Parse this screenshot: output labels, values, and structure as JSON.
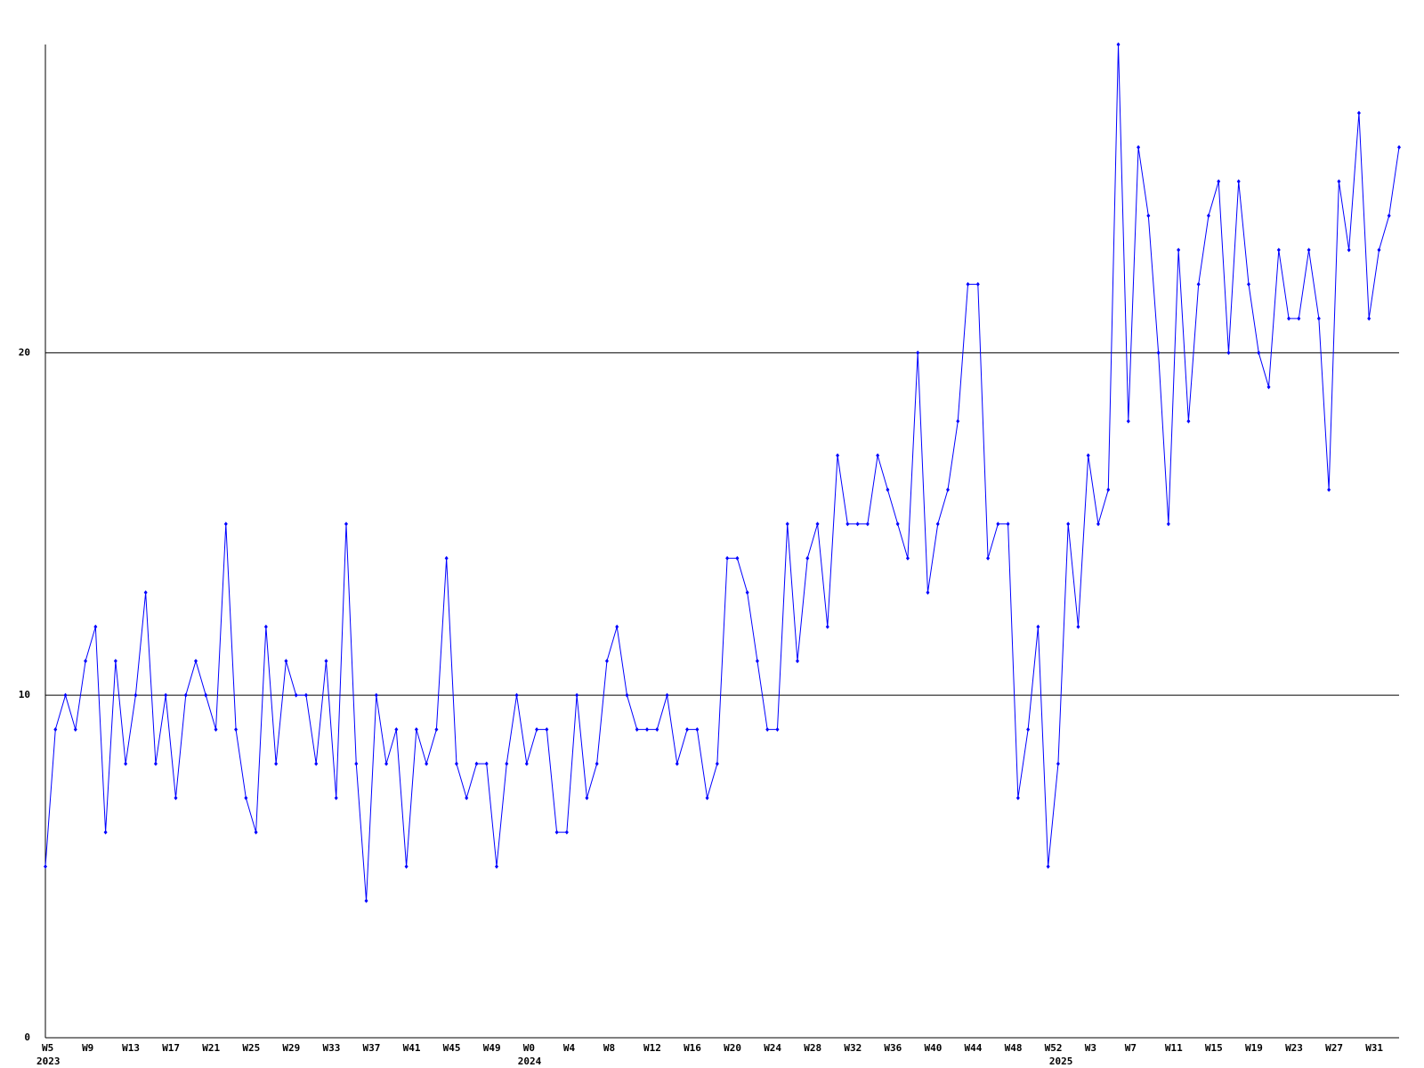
{
  "chart_data": {
    "type": "line",
    "categories": [
      "W5",
      null,
      null,
      null,
      "W9",
      null,
      null,
      null,
      "W13",
      null,
      null,
      null,
      "W17",
      null,
      null,
      null,
      "W21",
      null,
      null,
      null,
      "W25",
      null,
      null,
      null,
      "W29",
      null,
      null,
      null,
      "W33",
      null,
      null,
      null,
      "W37",
      null,
      null,
      null,
      "W41",
      null,
      null,
      null,
      "W45",
      null,
      null,
      null,
      "W49",
      null,
      null,
      null,
      "W0",
      null,
      null,
      null,
      "W4",
      null,
      null,
      null,
      "W8",
      null,
      null,
      null,
      "W12",
      null,
      null,
      null,
      "W16",
      null,
      null,
      null,
      "W20",
      null,
      null,
      null,
      "W24",
      null,
      null,
      null,
      "W28",
      null,
      null,
      null,
      "W32",
      null,
      null,
      null,
      "W36",
      null,
      null,
      null,
      "W40",
      null,
      null,
      null,
      "W44",
      null,
      null,
      null,
      "W48",
      null,
      null,
      null,
      "W52",
      null,
      null,
      null,
      "W3",
      null,
      null,
      null,
      "W7",
      null,
      null,
      null,
      "W11",
      null,
      null,
      null,
      "W15",
      null,
      null,
      null,
      "W19",
      null,
      null,
      null,
      "W23",
      null,
      null,
      null,
      "W27",
      null,
      null,
      null,
      "W31",
      null,
      null,
      null
    ],
    "year_labels": [
      "2023",
      null,
      null,
      null,
      null,
      null,
      null,
      null,
      null,
      null,
      null,
      null,
      null,
      null,
      null,
      null,
      null,
      null,
      null,
      null,
      null,
      null,
      null,
      null,
      null,
      null,
      null,
      null,
      null,
      null,
      null,
      null,
      null,
      null,
      null,
      null,
      null,
      null,
      null,
      null,
      null,
      null,
      null,
      null,
      null,
      null,
      null,
      null,
      "2024",
      null,
      null,
      null,
      null,
      null,
      null,
      null,
      null,
      null,
      null,
      null,
      null,
      null,
      null,
      null,
      null,
      null,
      null,
      null,
      null,
      null,
      null,
      null,
      null,
      null,
      null,
      null,
      null,
      null,
      null,
      null,
      null,
      null,
      null,
      null,
      null,
      null,
      null,
      null,
      null,
      null,
      null,
      null,
      null,
      null,
      null,
      null,
      null,
      null,
      null,
      null,
      null,
      "2025",
      null,
      null,
      null,
      null,
      null,
      null,
      null,
      null,
      null,
      null,
      null,
      null,
      null,
      null,
      null,
      null,
      null,
      null,
      null,
      null,
      null,
      null,
      null,
      null,
      null,
      null,
      null,
      null,
      null,
      null,
      null,
      null,
      null,
      null
    ],
    "series": [
      {
        "color": "#0000ff",
        "values": [
          5,
          9,
          10,
          9,
          11,
          12,
          6,
          11,
          8,
          10,
          13,
          8,
          10,
          7,
          10,
          11,
          10,
          9,
          15,
          9,
          7,
          6,
          12,
          8,
          11,
          10,
          10,
          8,
          11,
          7,
          15,
          8,
          4,
          10,
          8,
          9,
          5,
          9,
          8,
          9,
          14,
          8,
          7,
          8,
          8,
          5,
          8,
          10,
          8,
          9,
          9,
          6,
          6,
          10,
          7,
          8,
          11,
          12,
          10,
          9,
          9,
          9,
          10,
          8,
          9,
          9,
          7,
          8,
          14,
          14,
          13,
          11,
          9,
          9,
          15,
          11,
          14,
          15,
          12,
          17,
          15,
          15,
          15,
          17,
          16,
          15,
          14,
          20,
          13,
          15,
          16,
          18,
          22,
          22,
          14,
          15,
          15,
          7,
          9,
          12,
          5,
          8,
          15,
          12,
          17,
          15,
          16,
          29,
          18,
          26,
          24,
          20,
          15,
          23,
          18,
          22,
          24,
          25,
          20,
          25,
          22,
          20,
          19,
          23,
          21,
          21,
          23,
          21,
          16,
          25,
          23,
          27,
          21,
          23,
          24,
          26
        ]
      }
    ],
    "ylim": [
      0,
      29
    ],
    "yticks": [
      0,
      10,
      20
    ],
    "grid": true
  }
}
